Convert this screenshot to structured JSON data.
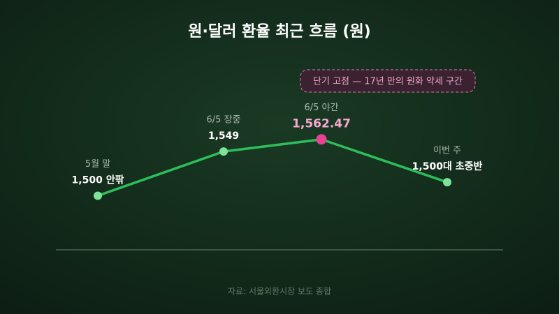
{
  "chart_data": {
    "type": "line",
    "title": "원·달러 환율 최근 흐름 (원)",
    "categories": [
      "5월 말",
      "6/5 장중",
      "6/5 야간",
      "이번 주"
    ],
    "values": [
      1500,
      1549,
      1562.47,
      1515
    ],
    "value_labels": [
      "1,500 안팎",
      "1,549",
      "1,562.47",
      "1,500대 초중반"
    ],
    "color": "#2dbe5a",
    "ylim": [
      1440,
      1570
    ],
    "annotation": "단기 고점 — 17년 만의 원화 약세 구간",
    "source": "자료: 서울외환시장 보도 종합"
  }
}
